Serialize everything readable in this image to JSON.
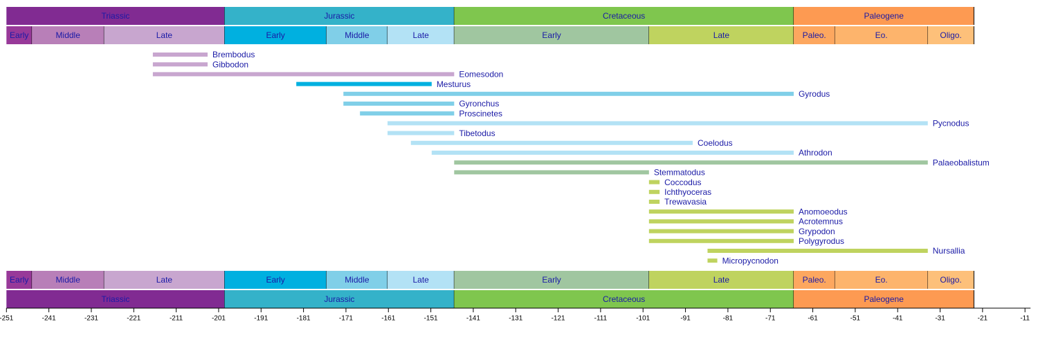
{
  "chart_data": {
    "type": "timeline",
    "xlim": [
      -251,
      -11
    ],
    "xticks": [
      -251,
      -241,
      -231,
      -221,
      -211,
      -201,
      -191,
      -181,
      -171,
      -161,
      -151,
      -141,
      -131,
      -121,
      -111,
      -101,
      -91,
      -81,
      -71,
      -61,
      -51,
      -41,
      -31,
      -21,
      -11
    ],
    "periods": [
      {
        "name": "Triassic",
        "start": -251,
        "end": -199.6,
        "color": "#812b92"
      },
      {
        "name": "Jurassic",
        "start": -199.6,
        "end": -145.5,
        "color": "#34b2c9"
      },
      {
        "name": "Cretaceous",
        "start": -145.5,
        "end": -65.5,
        "color": "#7fc64e"
      },
      {
        "name": "Paleogene",
        "start": -65.5,
        "end": -23.03,
        "color": "#fd9a52"
      }
    ],
    "epochs": [
      {
        "name": "Early",
        "start": -251,
        "end": -245,
        "color": "#983999"
      },
      {
        "name": "Middle",
        "start": -245,
        "end": -228,
        "color": "#b87fb8"
      },
      {
        "name": "Late",
        "start": -228,
        "end": -199.6,
        "color": "#c8a6cf"
      },
      {
        "name": "Early",
        "start": -199.6,
        "end": -175.6,
        "color": "#00b0e0"
      },
      {
        "name": "Middle",
        "start": -175.6,
        "end": -161.2,
        "color": "#80cfe8"
      },
      {
        "name": "Late",
        "start": -161.2,
        "end": -145.5,
        "color": "#b3e2f5"
      },
      {
        "name": "Early",
        "start": -145.5,
        "end": -99.6,
        "color": "#a0c6a0"
      },
      {
        "name": "Late",
        "start": -99.6,
        "end": -65.5,
        "color": "#bfd35f"
      },
      {
        "name": "Paleo.",
        "start": -65.5,
        "end": -55.8,
        "color": "#fda75f"
      },
      {
        "name": "Eo.",
        "start": -55.8,
        "end": -33.9,
        "color": "#fdb46c"
      },
      {
        "name": "Oligo.",
        "start": -33.9,
        "end": -23.03,
        "color": "#fdc07a"
      }
    ],
    "taxa": [
      {
        "name": "Brembodus",
        "start": -216.5,
        "end": -203.6,
        "color": "#c8a6cf"
      },
      {
        "name": "Gibbodon",
        "start": -216.5,
        "end": -203.6,
        "color": "#c8a6cf"
      },
      {
        "name": "Eomesodon",
        "start": -216.5,
        "end": -145.5,
        "color": "#c8a6cf"
      },
      {
        "name": "Mesturus",
        "start": -182.7,
        "end": -150.8,
        "color": "#00b0e0"
      },
      {
        "name": "Gyrodus",
        "start": -171.6,
        "end": -65.5,
        "color": "#80cfe8"
      },
      {
        "name": "Gyronchus",
        "start": -171.6,
        "end": -145.5,
        "color": "#80cfe8"
      },
      {
        "name": "Proscinetes",
        "start": -167.7,
        "end": -145.5,
        "color": "#80cfe8"
      },
      {
        "name": "Pycnodus",
        "start": -161.2,
        "end": -33.9,
        "color": "#b3e2f5"
      },
      {
        "name": "Tibetodus",
        "start": -161.2,
        "end": -145.5,
        "color": "#b3e2f5"
      },
      {
        "name": "Coelodus",
        "start": -155.7,
        "end": -89.3,
        "color": "#b3e2f5"
      },
      {
        "name": "Athrodon",
        "start": -150.8,
        "end": -65.5,
        "color": "#b3e2f5"
      },
      {
        "name": "Palaeobalistum",
        "start": -145.5,
        "end": -33.9,
        "color": "#a0c6a0"
      },
      {
        "name": "Stemmatodus",
        "start": -145.5,
        "end": -99.6,
        "color": "#a0c6a0"
      },
      {
        "name": "Coccodus",
        "start": -99.6,
        "end": -97.1,
        "color": "#bfd35f"
      },
      {
        "name": "Ichthyoceras",
        "start": -99.6,
        "end": -97.1,
        "color": "#bfd35f"
      },
      {
        "name": "Trewavasia",
        "start": -99.6,
        "end": -97.1,
        "color": "#bfd35f"
      },
      {
        "name": "Anomoeodus",
        "start": -99.6,
        "end": -65.5,
        "color": "#bfd35f"
      },
      {
        "name": "Acrotemnus",
        "start": -99.6,
        "end": -65.5,
        "color": "#bfd35f"
      },
      {
        "name": "Grypodon",
        "start": -99.6,
        "end": -65.5,
        "color": "#bfd35f"
      },
      {
        "name": "Polygyrodus",
        "start": -99.6,
        "end": -65.5,
        "color": "#bfd35f"
      },
      {
        "name": "Nursallia",
        "start": -85.8,
        "end": -33.9,
        "color": "#bfd35f"
      },
      {
        "name": "Micropycnodon",
        "start": -85.8,
        "end": -83.5,
        "color": "#bfd35f"
      }
    ]
  }
}
